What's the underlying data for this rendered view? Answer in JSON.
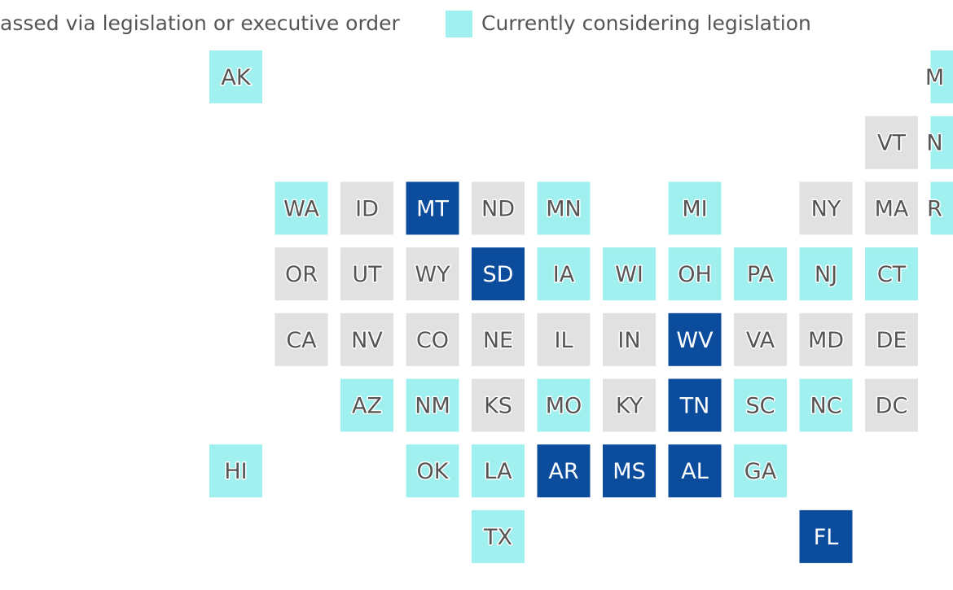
{
  "statuses": {
    "passed": "#0c4c9c",
    "considering": "#9ff0ef",
    "none": "#e1e1e1"
  },
  "legend": [
    {
      "label": "assed via legislation or executive order",
      "status": "passed"
    },
    {
      "label": "Currently considering legislation",
      "status": "considering"
    }
  ],
  "rows": [
    [
      {
        "label": "AK",
        "status": "considering"
      },
      null,
      null,
      null,
      null,
      null,
      null,
      null,
      null,
      null,
      null,
      {
        "label": "M",
        "status": "considering"
      }
    ],
    [
      null,
      null,
      null,
      null,
      null,
      null,
      null,
      null,
      null,
      null,
      {
        "label": "VT",
        "status": "none"
      },
      {
        "label": "N",
        "status": "considering"
      }
    ],
    [
      null,
      {
        "label": "WA",
        "status": "considering"
      },
      {
        "label": "ID",
        "status": "none"
      },
      {
        "label": "MT",
        "status": "passed"
      },
      {
        "label": "ND",
        "status": "none"
      },
      {
        "label": "MN",
        "status": "considering"
      },
      null,
      {
        "label": "MI",
        "status": "considering"
      },
      null,
      {
        "label": "NY",
        "status": "none"
      },
      {
        "label": "MA",
        "status": "none"
      },
      {
        "label": "R",
        "status": "considering"
      }
    ],
    [
      null,
      {
        "label": "OR",
        "status": "none"
      },
      {
        "label": "UT",
        "status": "none"
      },
      {
        "label": "WY",
        "status": "none"
      },
      {
        "label": "SD",
        "status": "passed"
      },
      {
        "label": "IA",
        "status": "considering"
      },
      {
        "label": "WI",
        "status": "considering"
      },
      {
        "label": "OH",
        "status": "considering"
      },
      {
        "label": "PA",
        "status": "considering"
      },
      {
        "label": "NJ",
        "status": "considering"
      },
      {
        "label": "CT",
        "status": "considering"
      },
      null
    ],
    [
      null,
      {
        "label": "CA",
        "status": "none"
      },
      {
        "label": "NV",
        "status": "none"
      },
      {
        "label": "CO",
        "status": "none"
      },
      {
        "label": "NE",
        "status": "none"
      },
      {
        "label": "IL",
        "status": "none"
      },
      {
        "label": "IN",
        "status": "none"
      },
      {
        "label": "WV",
        "status": "passed"
      },
      {
        "label": "VA",
        "status": "none"
      },
      {
        "label": "MD",
        "status": "none"
      },
      {
        "label": "DE",
        "status": "none"
      },
      null
    ],
    [
      null,
      null,
      {
        "label": "AZ",
        "status": "considering"
      },
      {
        "label": "NM",
        "status": "considering"
      },
      {
        "label": "KS",
        "status": "none"
      },
      {
        "label": "MO",
        "status": "considering"
      },
      {
        "label": "KY",
        "status": "none"
      },
      {
        "label": "TN",
        "status": "passed"
      },
      {
        "label": "SC",
        "status": "considering"
      },
      {
        "label": "NC",
        "status": "considering"
      },
      {
        "label": "DC",
        "status": "none"
      },
      null
    ],
    [
      {
        "label": "HI",
        "status": "considering"
      },
      null,
      null,
      {
        "label": "OK",
        "status": "considering"
      },
      {
        "label": "LA",
        "status": "considering"
      },
      {
        "label": "AR",
        "status": "passed"
      },
      {
        "label": "MS",
        "status": "passed"
      },
      {
        "label": "AL",
        "status": "passed"
      },
      {
        "label": "GA",
        "status": "considering"
      },
      null,
      null,
      null
    ],
    [
      null,
      null,
      null,
      null,
      {
        "label": "TX",
        "status": "considering"
      },
      null,
      null,
      null,
      null,
      {
        "label": "FL",
        "status": "passed"
      },
      null,
      null
    ]
  ]
}
